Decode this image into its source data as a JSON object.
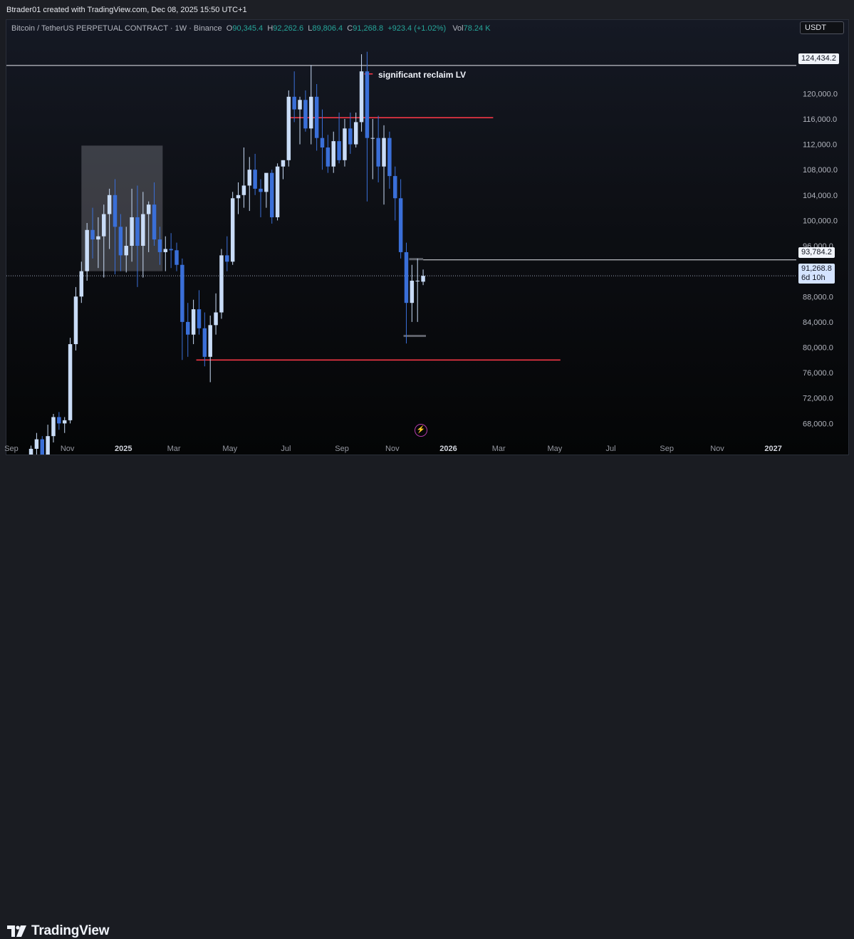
{
  "header": {
    "credit": "Btrader01 created with TradingView.com, Dec 08, 2025 15:50 UTC+1",
    "symbol": "Bitcoin / TetherUS PERPETUAL CONTRACT · 1W · Binance",
    "o_key": "O",
    "o_val": "90,345.4",
    "h_key": "H",
    "h_val": "92,262.6",
    "l_key": "L",
    "l_val": "89,806.4",
    "c_key": "C",
    "c_val": "91,268.8",
    "change": "+923.4 (+1.02%)",
    "vol_key": "Vol",
    "vol_val": "78.24 K",
    "currency": "USDT"
  },
  "branding": {
    "logo_text": "TradingView"
  },
  "annotation": "significant reclaim LV",
  "tags": {
    "top_price": "124,434.2",
    "level_price": "93,784.2",
    "last_price": "91,268.8",
    "countdown": "6d 10h"
  },
  "colors": {
    "bull": "#c9dcf7",
    "bear": "#3a6fd8",
    "red_line": "#f23645",
    "positive": "#26a69a"
  },
  "chart_data": {
    "type": "candlestick",
    "title": "Bitcoin / TetherUS PERPETUAL CONTRACT · 1W · Binance",
    "ylim": [
      64500,
      127800
    ],
    "y_ticks": [
      68000,
      72000,
      76000,
      80000,
      84000,
      88000,
      92000,
      96000,
      100000,
      104000,
      108000,
      112000,
      116000,
      120000
    ],
    "y_tick_labels": [
      "68,000.0",
      "72,000.0",
      "76,000.0",
      "80,000.0",
      "84,000.0",
      "88,000.0",
      "92,000.0",
      "96,000.0",
      "100,000.0",
      "104,000.0",
      "108,000.0",
      "112,000.0",
      "116,000.0",
      "120,000.0"
    ],
    "x_tick_labels": [
      {
        "t": "Sep",
        "w": 0
      },
      {
        "t": "Nov",
        "w": 10
      },
      {
        "t": "2025",
        "w": 20
      },
      {
        "t": "Mar",
        "w": 29
      },
      {
        "t": "May",
        "w": 39
      },
      {
        "t": "Jul",
        "w": 49
      },
      {
        "t": "Sep",
        "w": 59
      },
      {
        "t": "Nov",
        "w": 68
      },
      {
        "t": "2026",
        "w": 78
      },
      {
        "t": "Mar",
        "w": 87
      },
      {
        "t": "May",
        "w": 97
      },
      {
        "t": "Jul",
        "w": 107
      },
      {
        "t": "Sep",
        "w": 117
      },
      {
        "t": "Nov",
        "w": 126
      },
      {
        "t": "2027",
        "w": 136
      }
    ],
    "bold_ticks": [
      "2025",
      "2026",
      "2027"
    ],
    "week_count": 138,
    "candles": [
      [
        3,
        63000,
        64500,
        60000,
        64000
      ],
      [
        4,
        64000,
        66500,
        62500,
        65500
      ],
      [
        5,
        65500,
        66000,
        62800,
        63000
      ],
      [
        6,
        63000,
        67800,
        62500,
        66000
      ],
      [
        7,
        66000,
        69500,
        65000,
        69000
      ],
      [
        8,
        69000,
        69800,
        67000,
        68000
      ],
      [
        9,
        68000,
        69000,
        66500,
        68500
      ],
      [
        10,
        68500,
        81500,
        68000,
        80500
      ],
      [
        11,
        80500,
        89500,
        79500,
        88000
      ],
      [
        12,
        88000,
        93500,
        87000,
        92000
      ],
      [
        13,
        92000,
        99600,
        90500,
        98500
      ],
      [
        14,
        98500,
        102000,
        94000,
        97000
      ],
      [
        15,
        97000,
        100500,
        92500,
        97500
      ],
      [
        16,
        97500,
        102500,
        91000,
        101000
      ],
      [
        17,
        101000,
        105000,
        95500,
        104000
      ],
      [
        18,
        104000,
        106500,
        91500,
        99000
      ],
      [
        19,
        99000,
        101000,
        92000,
        94500
      ],
      [
        20,
        94500,
        99000,
        91800,
        96000
      ],
      [
        21,
        96000,
        105000,
        93500,
        100500
      ],
      [
        22,
        100500,
        105500,
        89500,
        96000
      ],
      [
        23,
        96000,
        104500,
        91000,
        101000
      ],
      [
        24,
        101000,
        103000,
        95000,
        102500
      ],
      [
        25,
        102500,
        106000,
        96000,
        97000
      ],
      [
        26,
        97000,
        99000,
        93000,
        95000
      ],
      [
        27,
        95000,
        97500,
        92000,
        95500
      ],
      [
        28,
        95500,
        98000,
        92500,
        95300
      ],
      [
        29,
        95300,
        96500,
        92000,
        93000
      ],
      [
        30,
        93000,
        94000,
        78000,
        84000
      ],
      [
        31,
        84000,
        87000,
        78500,
        82000
      ],
      [
        32,
        82000,
        87500,
        80500,
        86000
      ],
      [
        33,
        86000,
        89000,
        82000,
        83000
      ],
      [
        34,
        83000,
        85500,
        77000,
        78500
      ],
      [
        35,
        78500,
        85000,
        74500,
        83500
      ],
      [
        36,
        83500,
        88500,
        82000,
        85500
      ],
      [
        37,
        85500,
        95500,
        84500,
        94500
      ],
      [
        38,
        94500,
        97500,
        92000,
        93500
      ],
      [
        39,
        93500,
        104500,
        93000,
        103500
      ],
      [
        40,
        103500,
        106000,
        101000,
        104000
      ],
      [
        41,
        104000,
        111500,
        102000,
        105500
      ],
      [
        42,
        105500,
        110000,
        101500,
        108000
      ],
      [
        43,
        108000,
        110500,
        104000,
        105000
      ],
      [
        44,
        105000,
        106500,
        100500,
        104500
      ],
      [
        45,
        104500,
        107000,
        102000,
        107500
      ],
      [
        46,
        107500,
        108000,
        99500,
        100500
      ],
      [
        47,
        100500,
        109000,
        100000,
        108500
      ],
      [
        48,
        108500,
        109500,
        106500,
        109500
      ],
      [
        49,
        109500,
        120500,
        108500,
        119500
      ],
      [
        50,
        119500,
        123500,
        115500,
        117500
      ],
      [
        51,
        117500,
        119500,
        112000,
        119000
      ],
      [
        52,
        119000,
        120500,
        114000,
        114500
      ],
      [
        53,
        114500,
        124500,
        112000,
        119500
      ],
      [
        54,
        119500,
        121500,
        111000,
        113000
      ],
      [
        55,
        113000,
        117500,
        108000,
        111500
      ],
      [
        56,
        111500,
        113500,
        107500,
        108500
      ],
      [
        57,
        108500,
        114000,
        107500,
        112500
      ],
      [
        58,
        112500,
        117000,
        109000,
        109500
      ],
      [
        59,
        109500,
        116000,
        108500,
        114500
      ],
      [
        60,
        114500,
        117000,
        110500,
        112000
      ],
      [
        61,
        112000,
        117000,
        111500,
        115500
      ],
      [
        62,
        115500,
        126200,
        114000,
        123500
      ],
      [
        63,
        123500,
        126600,
        103000,
        113000
      ],
      [
        64,
        113000,
        116000,
        106500,
        113000
      ],
      [
        65,
        113000,
        116500,
        106000,
        108500
      ],
      [
        66,
        108500,
        115000,
        102500,
        113000
      ],
      [
        67,
        113000,
        114000,
        105000,
        107000
      ],
      [
        68,
        107000,
        108500,
        100000,
        103500
      ],
      [
        69,
        103500,
        106500,
        94000,
        95000
      ],
      [
        70,
        95000,
        96500,
        80600,
        87000
      ],
      [
        71,
        87000,
        93000,
        84000,
        90500
      ],
      [
        72,
        90500,
        94000,
        84000,
        90500
      ],
      [
        73,
        90345.4,
        92262.6,
        89806.4,
        91268.8
      ]
    ],
    "horizontal_lines": [
      {
        "price": 124434.2,
        "type": "white",
        "from_week": -1,
        "to_week": "axis"
      },
      {
        "price": 93784.2,
        "type": "white",
        "from_week": 73.5,
        "to_week": "axis"
      },
      {
        "price": 116200,
        "type": "red",
        "from_week": 49.5,
        "to_week": 86
      },
      {
        "price": 78000,
        "type": "red",
        "from_week": 33,
        "to_week": 98
      },
      {
        "price": 123100,
        "type": "red",
        "from_week": 63,
        "to_week": 64.5
      }
    ],
    "range_box": {
      "from_week": 12.5,
      "to_week": 27,
      "price_top": 111800,
      "price_bottom": 92000
    },
    "dashed_last_price": 91268.8,
    "grey_marks": [
      {
        "price": 93900,
        "from_week": 71,
        "to_week": 73.5
      },
      {
        "price": 81800,
        "from_week": 70,
        "to_week": 74
      }
    ]
  }
}
